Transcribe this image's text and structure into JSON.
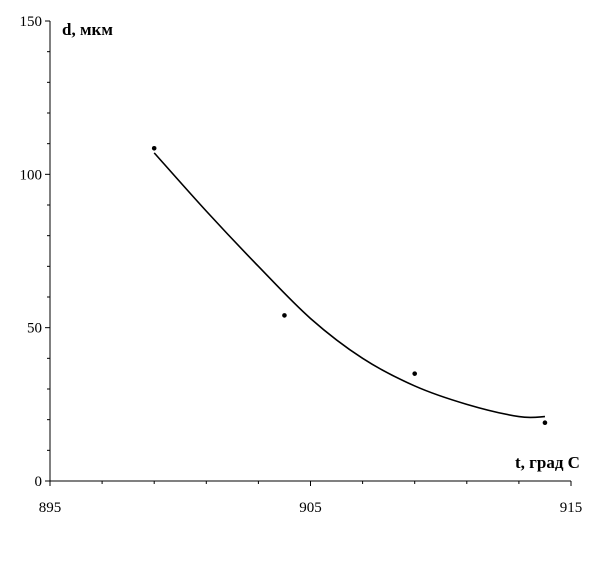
{
  "chart_data": {
    "type": "scatter",
    "title": "",
    "xlabel": "t, град С",
    "ylabel": "d, мкм",
    "xlim": [
      895,
      915
    ],
    "ylim": [
      0,
      150
    ],
    "x_ticks": [
      "895",
      "905",
      "915"
    ],
    "y_ticks": [
      "0",
      "50",
      "100",
      "150"
    ],
    "grid": false,
    "legend": "none",
    "series": [
      {
        "type": "scatter",
        "x": [
          899,
          904,
          909,
          914
        ],
        "y": [
          108.5,
          54,
          35,
          19
        ]
      },
      {
        "type": "line",
        "smooth": true,
        "x": [
          899,
          901,
          903,
          905,
          907,
          909,
          911,
          913,
          914
        ],
        "y": [
          107,
          88,
          70,
          53,
          40,
          31,
          25,
          21,
          21
        ]
      }
    ],
    "colors": {
      "axis": "#000000",
      "markers": "#000000",
      "trend": "#000000"
    }
  }
}
